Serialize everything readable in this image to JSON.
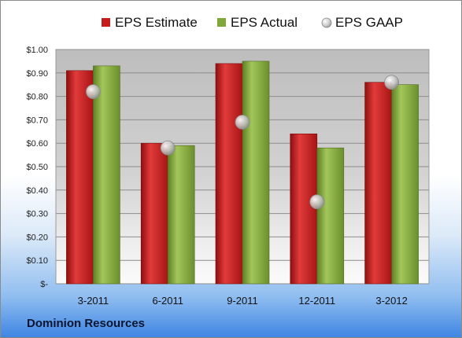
{
  "company": "Dominion Resources",
  "colors": {
    "estimate": "#c41c1c",
    "actual": "#7fa83a",
    "gaap": "#b9b9b9"
  },
  "chart_data": {
    "type": "bar",
    "categories": [
      "3-2011",
      "6-2011",
      "9-2011",
      "12-2011",
      "3-2012"
    ],
    "series": [
      {
        "name": "EPS Estimate",
        "kind": "bar",
        "values": [
          0.91,
          0.6,
          0.94,
          0.64,
          0.86
        ]
      },
      {
        "name": "EPS Actual",
        "kind": "bar",
        "values": [
          0.93,
          0.59,
          0.95,
          0.58,
          0.85
        ]
      },
      {
        "name": "EPS GAAP",
        "kind": "marker",
        "values": [
          0.82,
          0.58,
          0.69,
          0.35,
          0.86
        ]
      }
    ],
    "ylim": [
      0,
      1.0
    ],
    "yticks": [
      0,
      0.1,
      0.2,
      0.3,
      0.4,
      0.5,
      0.6,
      0.7,
      0.8,
      0.9,
      1.0
    ],
    "ytick_labels": [
      "$-",
      "$0.10",
      "$0.20",
      "$0.30",
      "$0.40",
      "$0.50",
      "$0.60",
      "$0.70",
      "$0.80",
      "$0.90",
      "$1.00"
    ],
    "legend_position": "top",
    "grid": true
  }
}
